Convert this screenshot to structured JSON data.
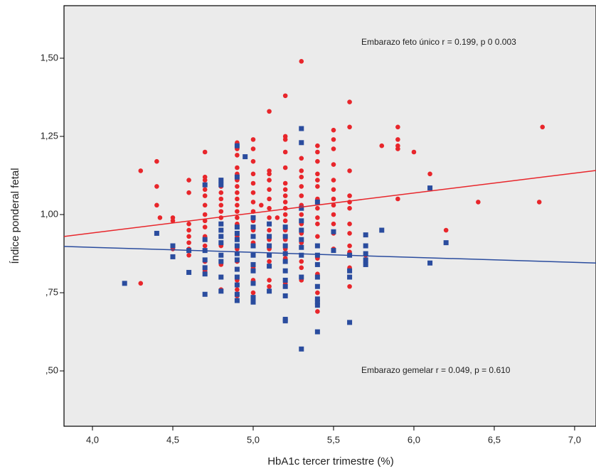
{
  "chart_data": {
    "type": "scatter",
    "x_label": "HbA1c tercer trimestre (%)",
    "y_label": "Índice ponderal fetal",
    "annotations": [
      "Embarazo feto único r = 0.199, p 0 0.003",
      "Embarazo gemelar r = 0.049, p = 0.610"
    ],
    "xlim": [
      3.823,
      7.133
    ],
    "ylim": [
      0.323,
      1.668
    ],
    "xticks": [
      {
        "value": 4.0,
        "label": "4,0"
      },
      {
        "value": 4.5,
        "label": "4,5"
      },
      {
        "value": 5.0,
        "label": "5,0"
      },
      {
        "value": 5.5,
        "label": "5,5"
      },
      {
        "value": 6.0,
        "label": "6,0"
      },
      {
        "value": 6.5,
        "label": "6,5"
      },
      {
        "value": 7.0,
        "label": "7,0"
      }
    ],
    "yticks": [
      {
        "value": 0.5,
        "label": ",50"
      },
      {
        "value": 0.75,
        "label": ",75"
      },
      {
        "value": 1.0,
        "label": "1,00"
      },
      {
        "value": 1.25,
        "label": "1,25"
      },
      {
        "value": 1.5,
        "label": "1,50"
      }
    ],
    "background": "#ebebeb",
    "series": [
      {
        "color": "#e8262b",
        "marker": "circle",
        "x": [
          4.3,
          4.3,
          4.4,
          4.4,
          4.4,
          4.4,
          4.42,
          4.5,
          4.5,
          4.5,
          4.5,
          4.6,
          4.6,
          4.6,
          4.6,
          4.6,
          4.6,
          4.6,
          4.6,
          4.7,
          4.7,
          4.7,
          4.7,
          4.7,
          4.7,
          4.7,
          4.7,
          4.7,
          4.7,
          4.7,
          4.7,
          4.7,
          4.8,
          4.8,
          4.8,
          4.8,
          4.8,
          4.8,
          4.8,
          4.8,
          4.8,
          4.8,
          4.8,
          4.8,
          4.8,
          4.8,
          4.8,
          4.9,
          4.9,
          4.9,
          4.9,
          4.9,
          4.9,
          4.9,
          4.9,
          4.9,
          4.9,
          4.9,
          4.9,
          4.9,
          4.9,
          4.9,
          4.9,
          4.9,
          4.9,
          4.9,
          5.0,
          5.0,
          5.0,
          5.0,
          5.0,
          5.0,
          5.0,
          5.0,
          5.0,
          5.0,
          5.0,
          5.0,
          5.0,
          5.0,
          5.0,
          5.05,
          5.1,
          5.1,
          5.1,
          5.1,
          5.1,
          5.1,
          5.1,
          5.1,
          5.1,
          5.1,
          5.1,
          5.1,
          5.1,
          5.1,
          5.15,
          5.2,
          5.2,
          5.2,
          5.2,
          5.2,
          5.2,
          5.2,
          5.2,
          5.2,
          5.2,
          5.2,
          5.2,
          5.2,
          5.2,
          5.2,
          5.2,
          5.2,
          5.2,
          5.3,
          5.3,
          5.3,
          5.3,
          5.3,
          5.3,
          5.3,
          5.3,
          5.3,
          5.3,
          5.3,
          5.3,
          5.3,
          5.3,
          5.3,
          5.4,
          5.4,
          5.4,
          5.4,
          5.4,
          5.4,
          5.4,
          5.4,
          5.4,
          5.4,
          5.4,
          5.4,
          5.4,
          5.4,
          5.4,
          5.4,
          5.5,
          5.5,
          5.5,
          5.5,
          5.5,
          5.5,
          5.5,
          5.5,
          5.5,
          5.5,
          5.5,
          5.5,
          5.6,
          5.6,
          5.6,
          5.6,
          5.6,
          5.6,
          5.6,
          5.6,
          5.6,
          5.6,
          5.6,
          5.6,
          5.7,
          5.8,
          5.9,
          5.9,
          5.9,
          5.9,
          5.9,
          6.0,
          6.1,
          6.2,
          6.4,
          6.78,
          6.8
        ],
        "values": [
          1.14,
          0.78,
          1.17,
          1.09,
          1.03,
          0.94,
          0.99,
          0.99,
          0.98,
          0.9,
          0.89,
          1.11,
          1.07,
          0.97,
          0.95,
          0.93,
          0.91,
          0.89,
          0.87,
          1.2,
          1.12,
          1.11,
          1.08,
          1.06,
          1.03,
          1.0,
          0.98,
          0.96,
          0.93,
          0.9,
          0.85,
          0.82,
          1.11,
          1.09,
          1.07,
          1.05,
          1.03,
          1.01,
          0.99,
          0.97,
          0.95,
          0.93,
          0.9,
          0.87,
          0.84,
          0.8,
          0.76,
          1.23,
          1.21,
          1.19,
          1.15,
          1.13,
          1.11,
          1.09,
          1.07,
          1.05,
          1.03,
          1.01,
          0.99,
          0.97,
          0.93,
          0.89,
          0.85,
          0.79,
          0.76,
          0.74,
          1.24,
          1.21,
          1.17,
          1.13,
          1.1,
          1.07,
          1.04,
          1.01,
          0.98,
          0.95,
          0.91,
          0.87,
          0.83,
          0.79,
          0.75,
          1.03,
          1.33,
          1.14,
          1.13,
          1.11,
          1.08,
          1.05,
          1.02,
          0.99,
          0.95,
          0.92,
          0.89,
          0.85,
          0.79,
          0.77,
          0.99,
          1.38,
          1.25,
          1.24,
          1.2,
          1.15,
          1.1,
          1.08,
          1.06,
          1.04,
          1.02,
          1.0,
          0.98,
          0.95,
          0.92,
          0.89,
          0.86,
          0.82,
          0.78,
          1.49,
          1.23,
          1.18,
          1.14,
          1.12,
          1.09,
          1.06,
          1.03,
          1.0,
          0.97,
          0.94,
          0.91,
          0.85,
          0.83,
          0.79,
          1.22,
          1.2,
          1.17,
          1.13,
          1.11,
          1.09,
          1.05,
          1.02,
          0.99,
          0.97,
          0.93,
          0.9,
          0.86,
          0.81,
          0.75,
          0.69,
          1.27,
          1.24,
          1.21,
          1.16,
          1.11,
          1.08,
          1.05,
          1.03,
          1.0,
          0.97,
          0.94,
          0.89,
          1.36,
          1.28,
          1.14,
          1.06,
          1.04,
          1.02,
          0.97,
          0.94,
          0.9,
          0.88,
          0.83,
          0.77,
          0.87,
          1.22,
          1.28,
          1.24,
          1.22,
          1.21,
          1.05,
          1.2,
          1.13,
          0.95,
          1.04,
          1.04,
          1.28
        ]
      },
      {
        "color": "#2a4c9e",
        "marker": "square",
        "x": [
          4.2,
          4.4,
          4.5,
          4.5,
          4.6,
          4.6,
          4.7,
          4.7,
          4.7,
          4.7,
          4.7,
          4.7,
          4.7,
          4.8,
          4.8,
          4.8,
          4.8,
          4.8,
          4.8,
          4.8,
          4.8,
          4.8,
          4.8,
          4.9,
          4.9,
          4.9,
          4.9,
          4.9,
          4.9,
          4.9,
          4.9,
          4.9,
          4.9,
          4.9,
          4.9,
          4.9,
          4.95,
          5.0,
          5.0,
          5.0,
          5.0,
          5.0,
          5.0,
          5.0,
          5.0,
          5.0,
          5.0,
          5.1,
          5.1,
          5.1,
          5.1,
          5.1,
          5.1,
          5.2,
          5.2,
          5.2,
          5.2,
          5.2,
          5.2,
          5.2,
          5.2,
          5.2,
          5.2,
          5.2,
          5.3,
          5.3,
          5.3,
          5.3,
          5.3,
          5.3,
          5.3,
          5.3,
          5.3,
          5.3,
          5.4,
          5.4,
          5.4,
          5.4,
          5.4,
          5.4,
          5.4,
          5.4,
          5.4,
          5.4,
          5.5,
          5.5,
          5.6,
          5.6,
          5.6,
          5.6,
          5.7,
          5.7,
          5.7,
          5.7,
          5.7,
          5.8,
          6.1,
          6.1,
          6.2
        ],
        "values": [
          0.78,
          0.94,
          0.9,
          0.865,
          0.885,
          0.815,
          1.095,
          0.92,
          0.885,
          0.855,
          0.83,
          0.81,
          0.745,
          1.11,
          1.095,
          0.97,
          0.95,
          0.93,
          0.91,
          0.87,
          0.85,
          0.8,
          0.755,
          1.22,
          1.12,
          0.96,
          0.94,
          0.92,
          0.9,
          0.875,
          0.855,
          0.825,
          0.8,
          0.775,
          0.745,
          0.725,
          1.185,
          0.99,
          0.96,
          0.93,
          0.9,
          0.87,
          0.84,
          0.82,
          0.78,
          0.735,
          0.72,
          0.97,
          0.93,
          0.9,
          0.87,
          0.835,
          0.755,
          0.96,
          0.93,
          0.9,
          0.875,
          0.85,
          0.82,
          0.79,
          0.77,
          0.74,
          0.665,
          0.66,
          1.275,
          1.23,
          1.02,
          0.98,
          0.95,
          0.92,
          0.895,
          0.87,
          0.8,
          0.57,
          1.04,
          0.9,
          0.87,
          0.84,
          0.8,
          0.77,
          0.73,
          0.72,
          0.71,
          0.625,
          0.945,
          0.885,
          0.87,
          0.82,
          0.8,
          0.655,
          0.935,
          0.9,
          0.875,
          0.855,
          0.84,
          0.95,
          1.085,
          0.845,
          0.91
        ]
      }
    ],
    "fit_lines": [
      {
        "color": "#e8262b",
        "x": [
          3.823,
          7.133
        ],
        "values": [
          0.93,
          1.141
        ]
      },
      {
        "color": "#2a4c9e",
        "x": [
          3.823,
          7.133
        ],
        "values": [
          0.898,
          0.845
        ]
      }
    ]
  }
}
